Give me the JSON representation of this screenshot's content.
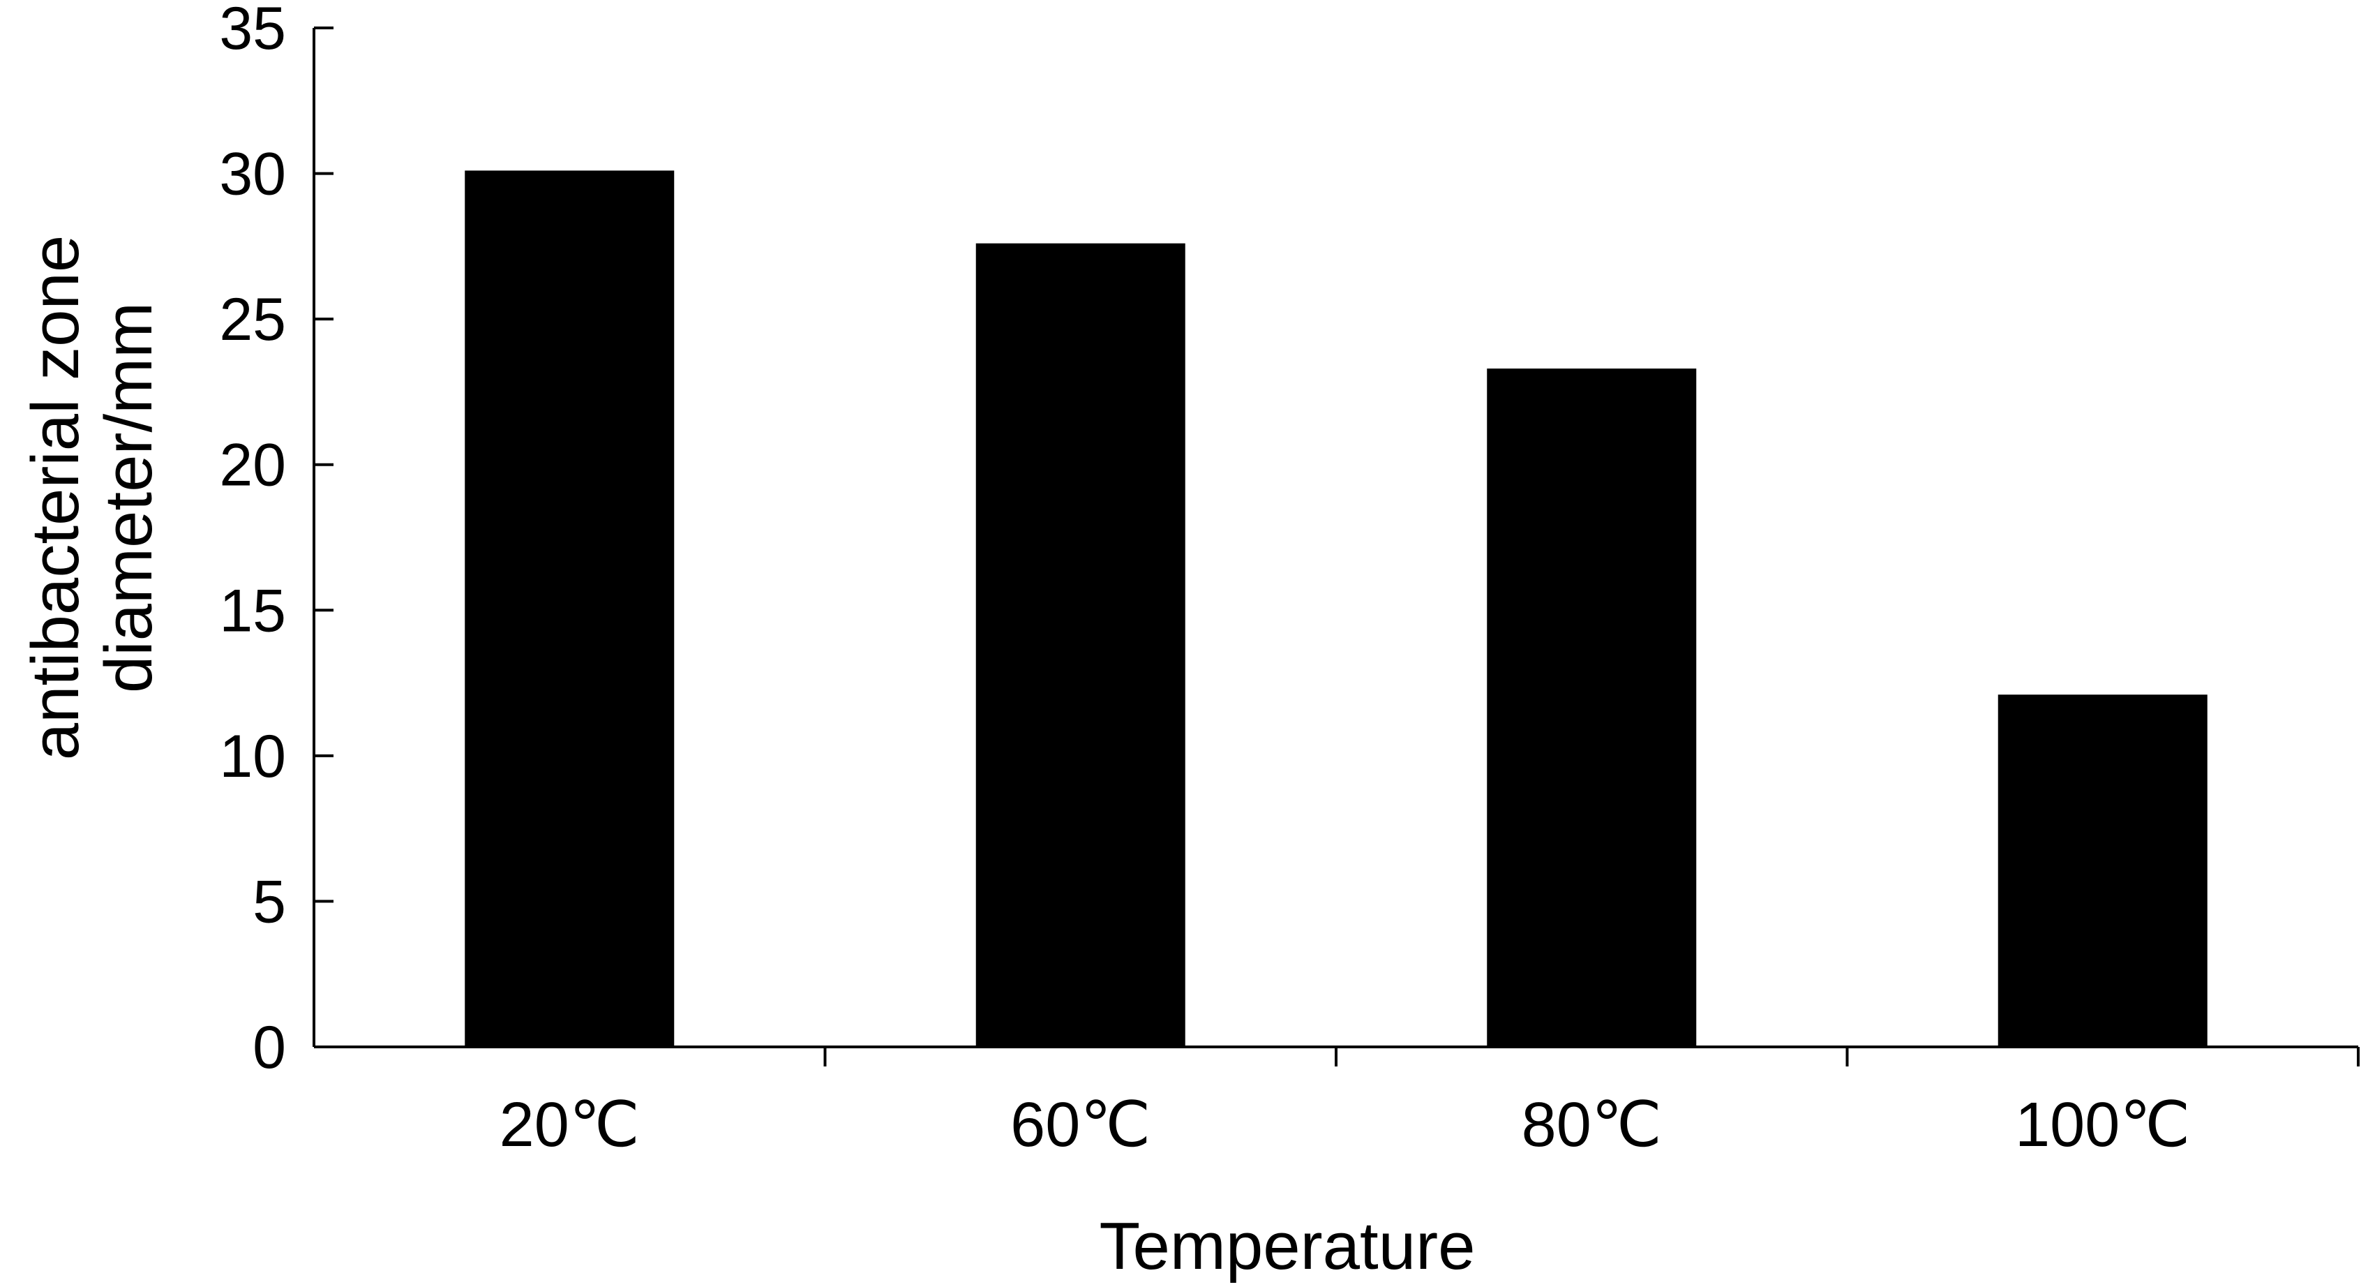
{
  "chart_data": {
    "type": "bar",
    "categories": [
      "20℃",
      "60℃",
      "80℃",
      "100℃"
    ],
    "values": [
      30.1,
      27.6,
      23.3,
      12.1
    ],
    "title": "",
    "xlabel": "Temperature",
    "ylabel_lines": [
      "antibacterial zone",
      "diameter/mm"
    ],
    "ylim": [
      0,
      35
    ],
    "yticks": [
      "0",
      "5",
      "10",
      "15",
      "20",
      "25",
      "30",
      "35"
    ],
    "bar_color": "#000000",
    "grid": false,
    "legend": "none"
  }
}
